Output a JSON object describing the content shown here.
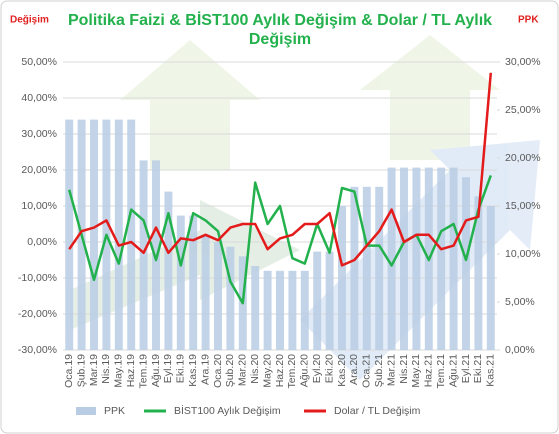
{
  "chart_data": {
    "type": "bar-line",
    "title": "Politika Faizi & BİST100 Aylık Değişim & Dolar / TL Aylık Değişim",
    "y_label": "Değişim",
    "y2_label": "PPK",
    "categories": [
      "Oca.19",
      "Şub.19",
      "Mar.19",
      "Nis.19",
      "May.19",
      "Haz.19",
      "Tem.19",
      "Ağu.19",
      "Eyl.19",
      "Eki.19",
      "Kas.19",
      "Ara.19",
      "Oca.20",
      "Şub.20",
      "Mar.20",
      "Nis.20",
      "May.20",
      "Haz.20",
      "Tem.20",
      "Ağu.20",
      "Eyl.20",
      "Eki.20",
      "Kas.20",
      "Ara.20",
      "Oca.21",
      "Şub.21",
      "Mar.21",
      "Nis.21",
      "May.21",
      "Haz.21",
      "Tem.21",
      "Ağu.21",
      "Eyl.21",
      "Eki.21",
      "Kas.21"
    ],
    "series": [
      {
        "name": "PPK",
        "kind": "bar",
        "axis": "y2",
        "color": "#b8cce4",
        "values": [
          24,
          24,
          24,
          24,
          24,
          24,
          19.75,
          19.75,
          16.5,
          14,
          14,
          12,
          11.25,
          10.75,
          9.75,
          8.75,
          8.25,
          8.25,
          8.25,
          8.25,
          10.25,
          10.25,
          15,
          17,
          17,
          17,
          19,
          19,
          19,
          19,
          19,
          19,
          18,
          16,
          15
        ]
      },
      {
        "name": "BİST100 Aylık Değişim",
        "kind": "line",
        "color": "#22b14c",
        "values": [
          14.5,
          2,
          -10.5,
          2,
          -6,
          9,
          6,
          -5,
          8,
          -6.5,
          8,
          6,
          3,
          -11,
          -17,
          16.5,
          5,
          10,
          -4.5,
          -6,
          5,
          -3,
          15,
          14,
          -1,
          -1,
          -6.5,
          0,
          2,
          -5,
          3,
          5,
          -5,
          9,
          18.5
        ]
      },
      {
        "name": "Dolar / TL Değişim",
        "kind": "line",
        "color": "#e31b1b",
        "values": [
          -2,
          3,
          4,
          6,
          -1,
          0,
          -3,
          4,
          -3,
          1,
          0.5,
          2,
          0.5,
          4,
          5,
          5,
          -2,
          1,
          2,
          5,
          5,
          8,
          -6.5,
          -5,
          -1,
          3,
          9,
          0,
          2,
          2,
          -2,
          -1,
          6,
          7,
          47
        ]
      }
    ],
    "ylim": [
      -30,
      50
    ],
    "yticks": [
      {
        "value": -30,
        "label": "-30,00%"
      },
      {
        "value": -20,
        "label": "-20,00%"
      },
      {
        "value": -10,
        "label": "-10,00%"
      },
      {
        "value": 0,
        "label": "0,00%"
      },
      {
        "value": 10,
        "label": "10,00%"
      },
      {
        "value": 20,
        "label": "20,00%"
      },
      {
        "value": 30,
        "label": "30,00%"
      },
      {
        "value": 40,
        "label": "40,00%"
      },
      {
        "value": 50,
        "label": "50,00%"
      }
    ],
    "y2lim": [
      0,
      30
    ],
    "y2ticks": [
      {
        "value": 0,
        "label": "0,00%"
      },
      {
        "value": 5,
        "label": "5,00%"
      },
      {
        "value": 10,
        "label": "10,00%"
      },
      {
        "value": 15,
        "label": "15,00%"
      },
      {
        "value": 20,
        "label": "20,00%"
      },
      {
        "value": 25,
        "label": "25,00%"
      },
      {
        "value": 30,
        "label": "30,00%"
      }
    ],
    "legend": "bottom"
  }
}
